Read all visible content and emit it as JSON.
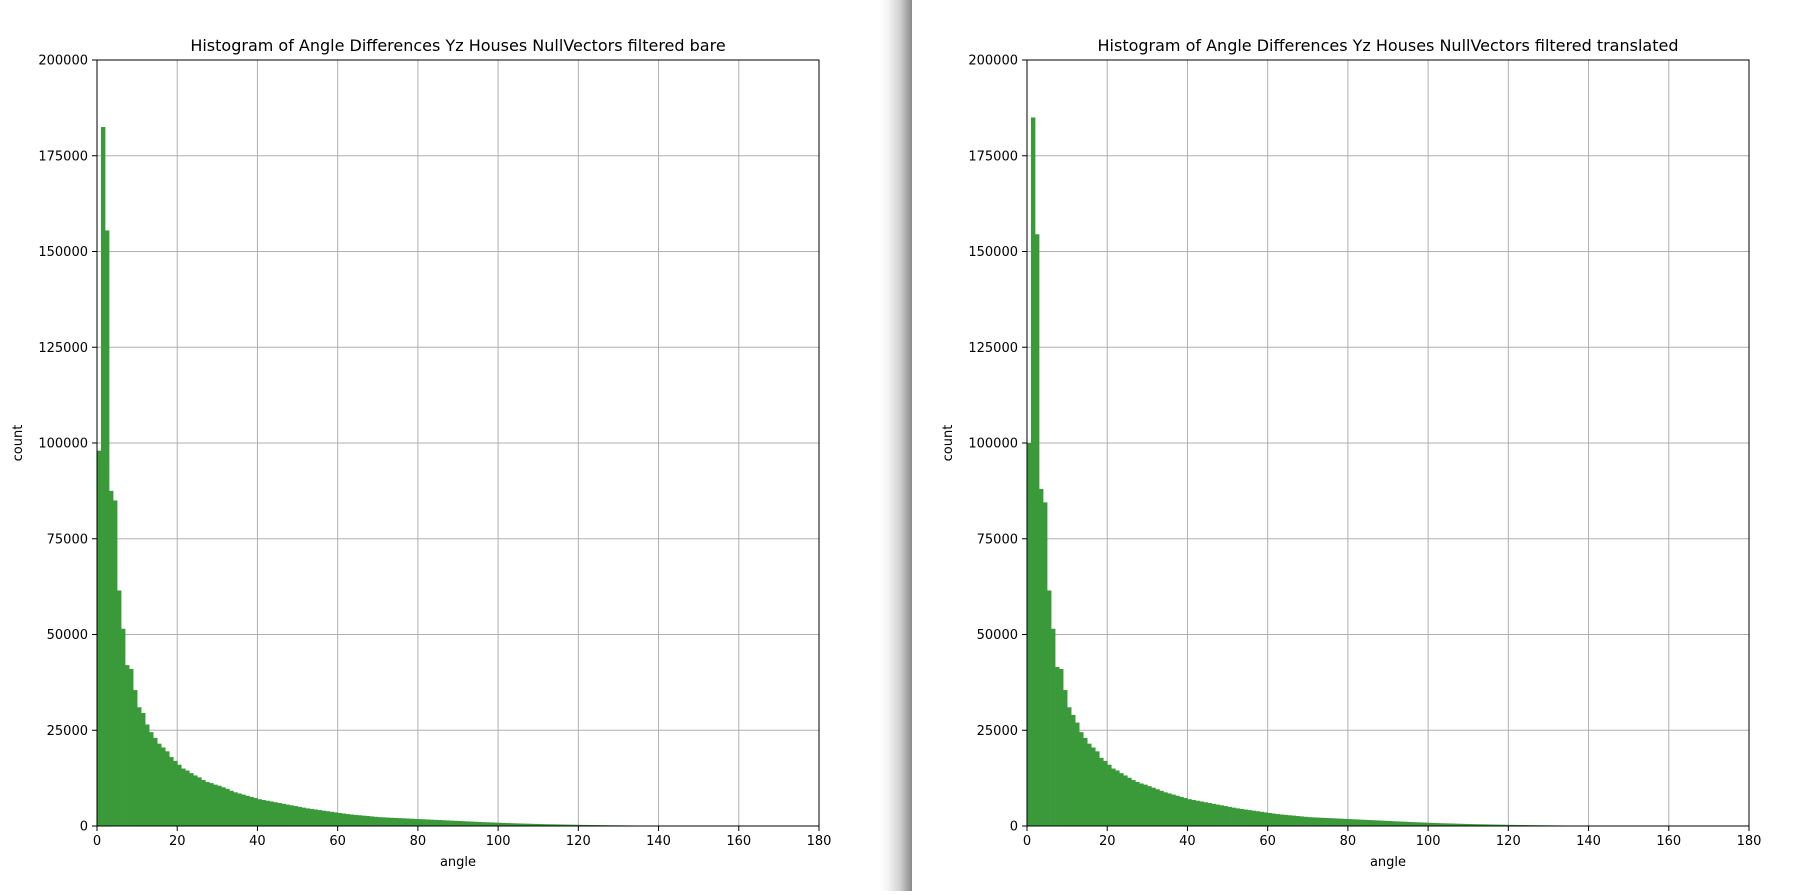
{
  "colors": {
    "bar": "#3a9a3a",
    "grid": "#b0b0b0",
    "axis": "#000000"
  },
  "chart_data": [
    {
      "type": "bar",
      "title": "Histogram of Angle Differences Yz Houses NullVectors filtered bare",
      "xlabel": "angle",
      "ylabel": "count",
      "xlim": [
        0,
        180
      ],
      "ylim": [
        0,
        200000
      ],
      "xticks": [
        "0",
        "20",
        "40",
        "60",
        "80",
        "100",
        "120",
        "140",
        "160",
        "180"
      ],
      "yticks": [
        "0",
        "25000",
        "50000",
        "75000",
        "100000",
        "125000",
        "150000",
        "175000",
        "200000"
      ],
      "grid": true,
      "bin_width": 1,
      "bin_start": 0,
      "values": [
        98000,
        182500,
        155500,
        87500,
        85000,
        61500,
        51500,
        42000,
        41000,
        35500,
        31000,
        29500,
        26500,
        24500,
        23000,
        21500,
        20500,
        19500,
        18000,
        17000,
        16000,
        15000,
        14500,
        13800,
        13200,
        12700,
        12000,
        11500,
        11200,
        10800,
        10500,
        10100,
        9700,
        9200,
        8800,
        8500,
        8200,
        7900,
        7600,
        7300,
        7000,
        6800,
        6600,
        6400,
        6200,
        6000,
        5800,
        5600,
        5400,
        5200,
        5000,
        4800,
        4600,
        4450,
        4300,
        4150,
        4000,
        3850,
        3700,
        3550,
        3400,
        3250,
        3100,
        3000,
        2900,
        2800,
        2700,
        2600,
        2500,
        2400,
        2300,
        2250,
        2200,
        2150,
        2100,
        2050,
        2000,
        1950,
        1900,
        1850,
        1800,
        1750,
        1700,
        1650,
        1600,
        1550,
        1500,
        1450,
        1400,
        1350,
        1300,
        1250,
        1200,
        1150,
        1100,
        1050,
        1000,
        960,
        920,
        880,
        840,
        800,
        760,
        720,
        690,
        660,
        630,
        600,
        570,
        540,
        510,
        480,
        460,
        440,
        420,
        400,
        380,
        360,
        340,
        320,
        300,
        285,
        270,
        255,
        240,
        225,
        210,
        200,
        190,
        180,
        170,
        160,
        150,
        140,
        130,
        120,
        110,
        100,
        92,
        85,
        78,
        72,
        66,
        60,
        55,
        50,
        45,
        40,
        35,
        30,
        26,
        22,
        19,
        16,
        13,
        11,
        9,
        7,
        6,
        5,
        4,
        3,
        2,
        2,
        1,
        1,
        1,
        1,
        0,
        0,
        0,
        0,
        0,
        0,
        0,
        0,
        0,
        0,
        0,
        0,
        0,
        0,
        0,
        0,
        0,
        0
      ]
    },
    {
      "type": "bar",
      "title": "Histogram of Angle Differences Yz Houses NullVectors filtered translated",
      "xlabel": "angle",
      "ylabel": "count",
      "xlim": [
        0,
        180
      ],
      "ylim": [
        0,
        200000
      ],
      "xticks": [
        "0",
        "20",
        "40",
        "60",
        "80",
        "100",
        "120",
        "140",
        "160",
        "180"
      ],
      "yticks": [
        "0",
        "25000",
        "50000",
        "75000",
        "100000",
        "125000",
        "150000",
        "175000",
        "200000"
      ],
      "grid": true,
      "bin_width": 1,
      "bin_start": 0,
      "values": [
        100000,
        185000,
        154500,
        88000,
        84500,
        61500,
        51500,
        41500,
        41000,
        35500,
        31000,
        29000,
        27000,
        24500,
        23000,
        21500,
        20500,
        19500,
        17800,
        17000,
        16000,
        15000,
        14500,
        13800,
        13200,
        12600,
        12000,
        11500,
        11100,
        10800,
        10400,
        10000,
        9600,
        9200,
        8800,
        8500,
        8200,
        7900,
        7600,
        7300,
        7000,
        6800,
        6600,
        6400,
        6200,
        6000,
        5800,
        5600,
        5400,
        5200,
        5000,
        4800,
        4600,
        4450,
        4300,
        4150,
        4000,
        3850,
        3700,
        3550,
        3400,
        3250,
        3100,
        3000,
        2900,
        2800,
        2700,
        2600,
        2500,
        2400,
        2300,
        2250,
        2200,
        2150,
        2100,
        2050,
        2000,
        1950,
        1900,
        1850,
        1800,
        1750,
        1700,
        1650,
        1600,
        1550,
        1500,
        1450,
        1400,
        1350,
        1300,
        1250,
        1200,
        1150,
        1100,
        1050,
        1000,
        960,
        920,
        880,
        840,
        800,
        760,
        720,
        690,
        660,
        630,
        600,
        570,
        540,
        510,
        480,
        460,
        440,
        420,
        400,
        380,
        360,
        340,
        320,
        300,
        285,
        270,
        255,
        240,
        225,
        210,
        200,
        190,
        180,
        170,
        160,
        150,
        140,
        130,
        120,
        110,
        100,
        92,
        85,
        78,
        72,
        66,
        60,
        55,
        50,
        45,
        40,
        35,
        30,
        26,
        22,
        19,
        16,
        13,
        11,
        9,
        7,
        6,
        5,
        4,
        3,
        2,
        2,
        1,
        1,
        1,
        1,
        0,
        0,
        0,
        0,
        0,
        0,
        0,
        0,
        0,
        0,
        0,
        0,
        0,
        0,
        0,
        0,
        0,
        0
      ]
    }
  ]
}
